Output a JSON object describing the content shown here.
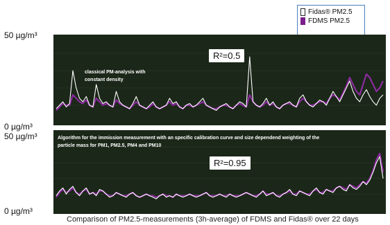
{
  "legend": {
    "items": [
      {
        "label": "Fidas® PM2.5",
        "color": "#ffffff",
        "border": "#222222"
      },
      {
        "label": "FDMS PM2.5",
        "color": "#7a1f8c",
        "border": "#7a1f8c"
      }
    ]
  },
  "caption": "Comparison of PM2.5-measurements (3h-average) of FDMS and Fidas® over 22 days",
  "panels": {
    "top": {
      "y_top_label": "50 µg/m³",
      "y_bottom_label": "0 µg/m³",
      "note_line1": "classical PM-analysis with",
      "note_line2": "constant density",
      "r2": "R²=0.5"
    },
    "bottom": {
      "y_top_label": "50 µg/m³",
      "y_bottom_label": "0 µg/m³",
      "note_line1": "Algorithm for the immission measurement with an specific calibration curve and size dependend weighting of the",
      "note_line2": "particle mass for PM1, PM2.5, PM4 and PM10",
      "r2": "R²=0.95"
    }
  },
  "chart_data": [
    {
      "type": "line",
      "ylim": [
        0,
        50
      ],
      "xlabel": "",
      "ylabel": "",
      "series": [
        {
          "name": "Fidas® PM2.5",
          "color": "#ffffff",
          "values": [
            8,
            10,
            12,
            9,
            11,
            30,
            20,
            14,
            12,
            15,
            10,
            9,
            22,
            14,
            11,
            12,
            10,
            9,
            18,
            12,
            10,
            9,
            8,
            11,
            15,
            10,
            9,
            8,
            10,
            12,
            9,
            8,
            9,
            10,
            14,
            11,
            12,
            9,
            8,
            10,
            11,
            9,
            10,
            12,
            14,
            10,
            9,
            8,
            7,
            9,
            10,
            11,
            9,
            8,
            10,
            12,
            11,
            9,
            38,
            12,
            10,
            9,
            11,
            14,
            10,
            12,
            9,
            8,
            10,
            11,
            12,
            10,
            9,
            14,
            16,
            12,
            10,
            9,
            11,
            13,
            12,
            10,
            14,
            18,
            15,
            12,
            16,
            20,
            24,
            18,
            14,
            12,
            16,
            19,
            15,
            12,
            10,
            14,
            16
          ]
        },
        {
          "name": "FDMS PM2.5",
          "color": "#8a2a9e",
          "values": [
            7,
            9,
            11,
            10,
            10,
            16,
            14,
            12,
            11,
            13,
            10,
            9,
            14,
            12,
            10,
            11,
            10,
            9,
            13,
            11,
            10,
            9,
            8,
            10,
            12,
            10,
            9,
            8,
            9,
            11,
            9,
            8,
            9,
            10,
            12,
            10,
            11,
            9,
            8,
            10,
            10,
            9,
            10,
            11,
            12,
            10,
            9,
            8,
            8,
            9,
            10,
            10,
            9,
            8,
            10,
            11,
            10,
            9,
            16,
            12,
            10,
            9,
            10,
            12,
            10,
            11,
            9,
            8,
            10,
            11,
            11,
            10,
            9,
            12,
            14,
            12,
            10,
            10,
            11,
            12,
            12,
            11,
            14,
            16,
            15,
            13,
            17,
            21,
            26,
            22,
            18,
            16,
            22,
            28,
            26,
            22,
            18,
            20,
            24
          ]
        }
      ]
    },
    {
      "type": "line",
      "ylim": [
        0,
        50
      ],
      "xlabel": "",
      "ylabel": "",
      "series": [
        {
          "name": "Fidas® PM2.5",
          "color": "#ffffff",
          "values": [
            9,
            12,
            14,
            10,
            13,
            15,
            11,
            9,
            12,
            14,
            10,
            11,
            9,
            13,
            12,
            10,
            8,
            9,
            11,
            10,
            9,
            8,
            10,
            11,
            9,
            8,
            9,
            10,
            9,
            8,
            7,
            9,
            10,
            8,
            9,
            8,
            10,
            9,
            8,
            9,
            10,
            9,
            8,
            9,
            10,
            11,
            9,
            8,
            9,
            10,
            9,
            8,
            10,
            9,
            8,
            9,
            10,
            11,
            10,
            9,
            8,
            10,
            12,
            9,
            10,
            11,
            9,
            8,
            10,
            11,
            13,
            10,
            9,
            12,
            11,
            10,
            9,
            12,
            14,
            11,
            10,
            13,
            12,
            11,
            14,
            15,
            13,
            12,
            16,
            14,
            13,
            15,
            18,
            16,
            19,
            24,
            30,
            34,
            20
          ]
        },
        {
          "name": "FDMS PM2.5",
          "color": "#8a2a9e",
          "values": [
            8,
            11,
            13,
            11,
            12,
            14,
            11,
            10,
            12,
            13,
            10,
            11,
            10,
            12,
            12,
            10,
            9,
            9,
            11,
            10,
            9,
            9,
            10,
            11,
            9,
            8,
            9,
            10,
            9,
            9,
            8,
            9,
            10,
            9,
            9,
            8,
            10,
            9,
            9,
            9,
            10,
            9,
            9,
            9,
            10,
            11,
            9,
            9,
            9,
            10,
            9,
            9,
            10,
            9,
            9,
            9,
            10,
            11,
            10,
            9,
            9,
            10,
            12,
            10,
            10,
            11,
            9,
            9,
            10,
            11,
            12,
            10,
            10,
            12,
            11,
            10,
            10,
            12,
            13,
            11,
            11,
            13,
            12,
            12,
            14,
            15,
            14,
            13,
            16,
            15,
            14,
            16,
            18,
            17,
            20,
            25,
            32,
            36,
            24
          ]
        }
      ]
    }
  ]
}
